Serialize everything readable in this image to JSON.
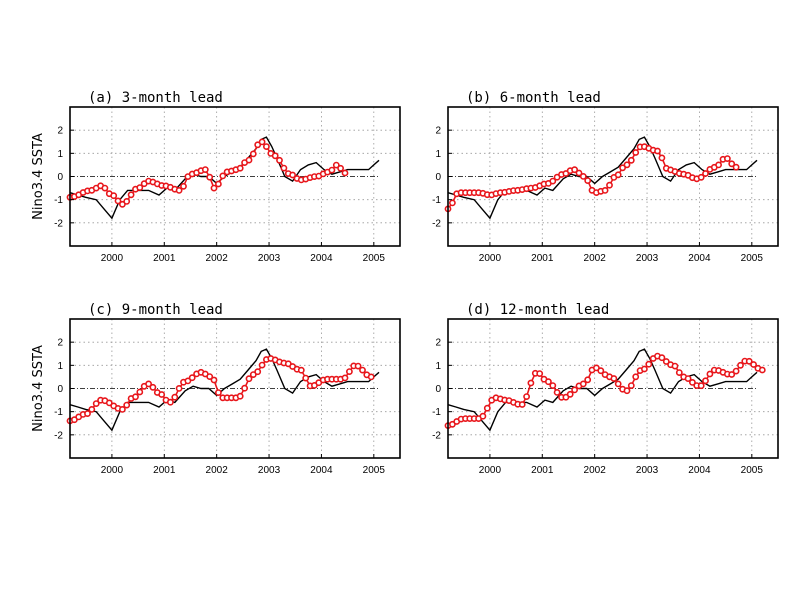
{
  "chart_data": [
    {
      "type": "line",
      "title": "(a) 3-month lead",
      "ylabel": "Nino3.4 SSTA",
      "xlim": [
        1999.2,
        2005.5
      ],
      "ylim": [
        -3,
        3
      ],
      "xticks": [
        2000,
        2001,
        2002,
        2003,
        2004,
        2005
      ],
      "yticks": [
        -2,
        -1,
        0,
        1,
        2
      ],
      "forecast": {
        "start": 1999.2,
        "end": 2004.45,
        "knots_x": [
          1999.2,
          1999.6,
          1999.8,
          2000.0,
          2000.2,
          2000.5,
          2000.7,
          2001.0,
          2001.3,
          2001.5,
          2001.8,
          2001.95,
          2002.2,
          2002.4,
          2002.6,
          2002.85,
          2003.1,
          2003.4,
          2003.6,
          2003.9,
          2004.15,
          2004.3,
          2004.45
        ],
        "knots_y": [
          -0.9,
          -0.6,
          -0.4,
          -0.8,
          -1.2,
          -0.5,
          -0.2,
          -0.4,
          -0.6,
          0.1,
          0.3,
          -0.5,
          0.2,
          0.3,
          0.7,
          1.5,
          0.9,
          0.1,
          -0.15,
          0.0,
          0.2,
          0.5,
          0.15
        ]
      }
    },
    {
      "type": "line",
      "title": "(b) 6-month lead",
      "ylabel": "",
      "xlim": [
        1999.2,
        2005.5
      ],
      "ylim": [
        -3,
        3
      ],
      "xticks": [
        2000,
        2001,
        2002,
        2003,
        2004,
        2005
      ],
      "yticks": [
        -2,
        -1,
        0,
        1,
        2
      ],
      "forecast": {
        "start": 1999.2,
        "end": 2004.7,
        "knots_x": [
          1999.2,
          1999.4,
          1999.8,
          2000.0,
          2000.2,
          2000.5,
          2000.8,
          2001.1,
          2001.4,
          2001.6,
          2001.8,
          2002.0,
          2002.2,
          2002.4,
          2002.6,
          2002.9,
          2003.2,
          2003.4,
          2003.7,
          2003.95,
          2004.3,
          2004.5,
          2004.7
        ],
        "knots_y": [
          -1.4,
          -0.7,
          -0.7,
          -0.8,
          -0.7,
          -0.6,
          -0.5,
          -0.3,
          0.1,
          0.3,
          0.0,
          -0.7,
          -0.6,
          0.0,
          0.5,
          1.3,
          1.1,
          0.3,
          0.1,
          -0.1,
          0.4,
          0.8,
          0.4
        ]
      }
    },
    {
      "type": "line",
      "title": "(c) 9-month lead",
      "ylabel": "Nino3.4 SSTA",
      "xlim": [
        1999.2,
        2005.5
      ],
      "ylim": [
        -3,
        3
      ],
      "xticks": [
        2000,
        2001,
        2002,
        2003,
        2004,
        2005
      ],
      "yticks": [
        -2,
        -1,
        0,
        1,
        2
      ],
      "forecast": {
        "start": 1999.2,
        "end": 2004.95,
        "knots_x": [
          1999.2,
          1999.5,
          1999.8,
          2000.2,
          2000.4,
          2000.7,
          2000.9,
          2001.1,
          2001.4,
          2001.7,
          2001.9,
          2002.1,
          2002.4,
          2002.7,
          2003.0,
          2003.3,
          2003.6,
          2003.8,
          2004.1,
          2004.4,
          2004.65,
          2004.95
        ],
        "knots_y": [
          -1.4,
          -1.1,
          -0.5,
          -0.9,
          -0.4,
          0.2,
          -0.2,
          -0.6,
          0.3,
          0.7,
          0.5,
          -0.4,
          -0.4,
          0.6,
          1.3,
          1.1,
          0.8,
          0.1,
          0.4,
          0.4,
          1.0,
          0.5
        ]
      }
    },
    {
      "type": "line",
      "title": "(d) 12-month lead",
      "ylabel": "",
      "xlim": [
        1999.2,
        2005.5
      ],
      "ylim": [
        -3,
        3
      ],
      "xticks": [
        2000,
        2001,
        2002,
        2003,
        2004,
        2005
      ],
      "yticks": [
        -2,
        -1,
        0,
        1,
        2
      ],
      "forecast": {
        "start": 1999.2,
        "end": 2005.2,
        "knots_x": [
          1999.2,
          1999.5,
          1999.8,
          2000.1,
          2000.3,
          2000.6,
          2000.9,
          2001.1,
          2001.4,
          2001.8,
          2002.0,
          2002.3,
          2002.6,
          2002.9,
          2003.2,
          2003.5,
          2003.7,
          2004.0,
          2004.3,
          2004.6,
          2004.9,
          2005.2
        ],
        "knots_y": [
          -1.6,
          -1.3,
          -1.3,
          -0.4,
          -0.5,
          -0.7,
          0.7,
          0.3,
          -0.4,
          0.2,
          0.9,
          0.5,
          -0.1,
          0.8,
          1.4,
          1.0,
          0.5,
          0.1,
          0.8,
          0.6,
          1.2,
          0.8
        ]
      }
    }
  ],
  "observed": {
    "x": [
      1999.2,
      1999.35,
      1999.5,
      1999.7,
      1999.85,
      2000.0,
      2000.15,
      2000.3,
      2000.5,
      2000.7,
      2000.9,
      2001.05,
      2001.2,
      2001.4,
      2001.55,
      2001.7,
      2001.85,
      2002.0,
      2002.15,
      2002.3,
      2002.45,
      2002.6,
      2002.75,
      2002.85,
      2002.95,
      2003.05,
      2003.15,
      2003.3,
      2003.45,
      2003.6,
      2003.75,
      2003.9,
      2004.05,
      2004.2,
      2004.35,
      2004.5,
      2004.7,
      2004.9,
      2005.0,
      2005.1
    ],
    "y": [
      -0.7,
      -0.8,
      -0.9,
      -1.0,
      -1.4,
      -1.8,
      -1.0,
      -0.6,
      -0.6,
      -0.6,
      -0.8,
      -0.5,
      -0.6,
      -0.1,
      0.1,
      0.0,
      0.0,
      -0.3,
      0.0,
      0.2,
      0.4,
      0.8,
      1.2,
      1.6,
      1.7,
      1.3,
      0.8,
      0.0,
      -0.2,
      0.3,
      0.5,
      0.6,
      0.3,
      0.1,
      0.2,
      0.3,
      0.3,
      0.3,
      0.5,
      0.7
    ]
  },
  "colors": {
    "forecast": "#e8161b",
    "observed": "#000000"
  }
}
